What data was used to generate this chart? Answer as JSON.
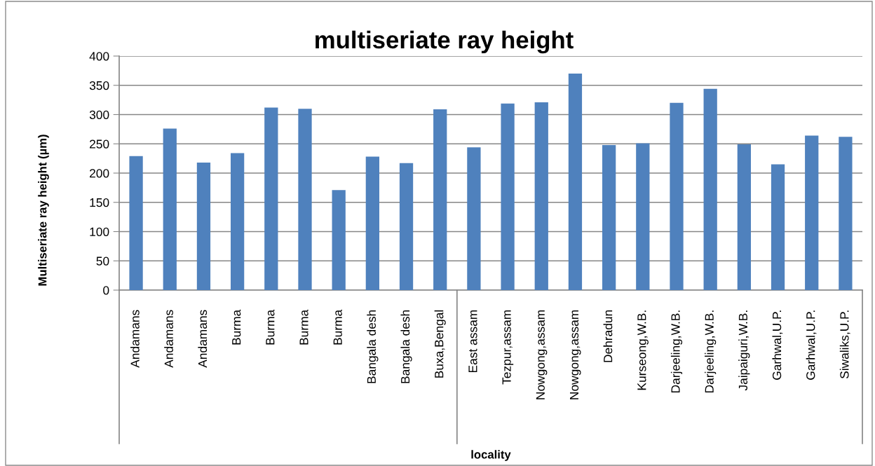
{
  "chart_data": {
    "type": "bar",
    "title": "multiseriate ray height",
    "xlabel": "locality",
    "ylabel": "Multiseriate ray height (µm)",
    "categories": [
      "Andamans",
      "Andamans",
      "Andamans",
      "Burma",
      "Burma",
      "Burma",
      "Burma",
      "Bangala desh",
      "Bangala desh",
      "Buxa,Bengal",
      "East assam",
      "Tezpur,assam",
      "Nowgong,assam",
      "Nowgong,assam",
      "Dehradun",
      "Kurseong,W.B.",
      "Darjeeling,W.B.",
      "Darjeeling,W.B.",
      "Jaipaiguri,W.B.",
      "Garhwal,U.P.",
      "Garhwal,U.P.",
      "Siwaliks,U.P."
    ],
    "values": [
      229,
      276,
      218,
      234,
      312,
      310,
      171,
      228,
      217,
      309,
      244,
      319,
      321,
      370,
      248,
      251,
      320,
      344,
      249,
      215,
      264,
      262
    ],
    "color": "#4f81bd",
    "ylim": [
      0,
      400
    ],
    "yticks": [
      0,
      50,
      100,
      150,
      200,
      250,
      300,
      350,
      400
    ],
    "grid": "y",
    "legend": false
  }
}
